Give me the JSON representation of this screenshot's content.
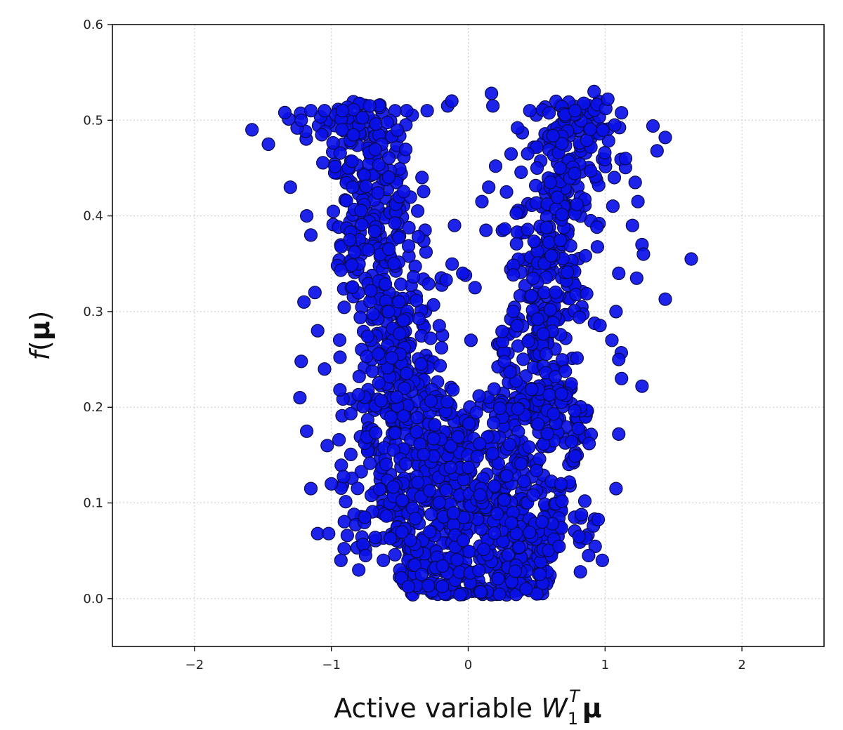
{
  "chart_data": {
    "type": "scatter",
    "xlabel": {
      "text": "Active variable ",
      "symbol": "W",
      "subscript": "1",
      "superscript": "T",
      "tail": "μ"
    },
    "ylabel": {
      "func": "f",
      "open": "(",
      "arg": "μ",
      "close": ")"
    },
    "xlim": [
      -2.6,
      2.6
    ],
    "ylim": [
      -0.05,
      0.6
    ],
    "xticks": [
      -2,
      -1,
      0,
      1,
      2
    ],
    "xtick_labels": [
      "−2",
      "−1",
      "0",
      "1",
      "2"
    ],
    "yticks": [
      0.0,
      0.1,
      0.2,
      0.3,
      0.4,
      0.5,
      0.6
    ],
    "ytick_labels": [
      "0.0",
      "0.1",
      "0.2",
      "0.3",
      "0.4",
      "0.5",
      "0.6"
    ],
    "grid": true,
    "marker_color": "#0a10e6",
    "marker_edge_color": "#0a0a50",
    "approx_point_count": 1600,
    "points": [
      [
        -1.58,
        0.49
      ],
      [
        -1.46,
        0.475
      ],
      [
        -1.34,
        0.508
      ],
      [
        -1.3,
        0.43
      ],
      [
        -1.22,
        0.5
      ],
      [
        -1.15,
        0.51
      ],
      [
        -1.05,
        0.51
      ],
      [
        -0.92,
        0.51
      ],
      [
        -0.72,
        0.515
      ],
      [
        -0.45,
        0.51
      ],
      [
        -0.3,
        0.51
      ],
      [
        -0.15,
        0.515
      ],
      [
        -0.12,
        0.52
      ],
      [
        0.17,
        0.528
      ],
      [
        0.18,
        0.515
      ],
      [
        0.45,
        0.51
      ],
      [
        0.92,
        0.53
      ],
      [
        1.02,
        0.522
      ],
      [
        0.78,
        0.51
      ],
      [
        1.35,
        0.494
      ],
      [
        1.44,
        0.482
      ],
      [
        1.38,
        0.468
      ],
      [
        1.22,
        0.435
      ],
      [
        1.24,
        0.415
      ],
      [
        1.27,
        0.37
      ],
      [
        1.28,
        0.36
      ],
      [
        1.63,
        0.355
      ],
      [
        1.44,
        0.313
      ],
      [
        1.27,
        0.222
      ],
      [
        1.1,
        0.172
      ],
      [
        1.08,
        0.115
      ],
      [
        0.98,
        0.04
      ],
      [
        -0.02,
        0.338
      ],
      [
        0.05,
        0.325
      ],
      [
        0.02,
        0.27
      ],
      [
        0.1,
        0.415
      ],
      [
        0.13,
        0.385
      ],
      [
        0.2,
        0.452
      ],
      [
        0.15,
        0.43
      ],
      [
        0.28,
        0.425
      ],
      [
        -0.1,
        0.39
      ],
      [
        -0.04,
        0.34
      ],
      [
        -1.22,
        0.248
      ],
      [
        -1.23,
        0.21
      ],
      [
        -1.18,
        0.175
      ],
      [
        -1.15,
        0.115
      ],
      [
        -1.1,
        0.068
      ],
      [
        -1.02,
        0.068
      ],
      [
        -0.93,
        0.04
      ],
      [
        -1.2,
        0.31
      ],
      [
        -1.18,
        0.4
      ],
      [
        -1.15,
        0.38
      ],
      [
        -1.12,
        0.32
      ],
      [
        -1.1,
        0.28
      ],
      [
        -1.05,
        0.24
      ],
      [
        -1.03,
        0.16
      ],
      [
        -1.0,
        0.12
      ],
      [
        1.1,
        0.25
      ],
      [
        1.12,
        0.23
      ],
      [
        1.05,
        0.27
      ],
      [
        1.08,
        0.3
      ],
      [
        1.1,
        0.34
      ],
      [
        1.2,
        0.39
      ],
      [
        1.15,
        0.46
      ],
      [
        1.07,
        0.495
      ],
      [
        0.88,
        0.045
      ],
      [
        0.82,
        0.028
      ],
      [
        -0.8,
        0.03
      ],
      [
        -0.75,
        0.045
      ],
      [
        -0.62,
        0.04
      ]
    ],
    "clusters": [
      {
        "shape": "bottom-bowl",
        "xcenter": 0.0,
        "xhalf": 0.72,
        "yfrom": 0.0,
        "yto": 0.2,
        "n": 650
      },
      {
        "shape": "arm-left",
        "x_at_0_2": -0.42,
        "x_at_0_5": -0.8,
        "spread": 0.27,
        "n": 420
      },
      {
        "shape": "arm-right",
        "x_at_0_2": 0.45,
        "x_at_0_5": 0.78,
        "spread": 0.25,
        "n": 400
      },
      {
        "shape": "mid-fill",
        "xfrom": -0.95,
        "xto": 0.95,
        "yfrom": 0.05,
        "yto": 0.22,
        "n": 260
      }
    ]
  }
}
